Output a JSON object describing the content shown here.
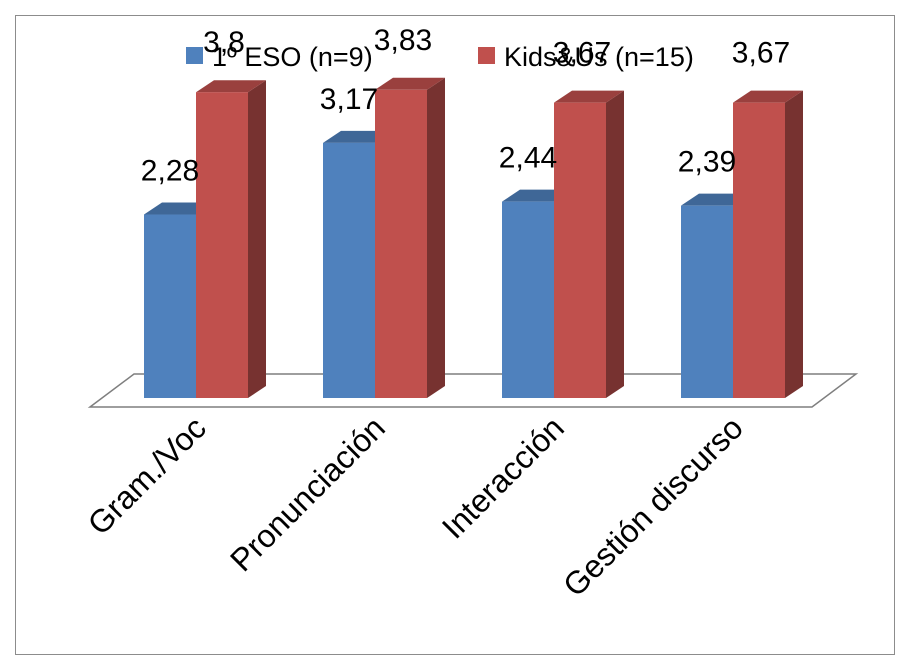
{
  "chart_data": {
    "type": "bar",
    "categories": [
      "Gram./Voc",
      "Pronunciación",
      "Interacción",
      "Gestión discurso"
    ],
    "series": [
      {
        "name": "1º ESO (n=9)",
        "values": [
          2.28,
          3.17,
          2.44,
          2.39
        ],
        "labels": [
          "2,28",
          "3,17",
          "2,44",
          "2,39"
        ],
        "color": "#4F81BD"
      },
      {
        "name": "Kids&Us (n=15)",
        "values": [
          3.8,
          3.83,
          3.67,
          3.67
        ],
        "labels": [
          "3,8",
          "3,83",
          "3,67",
          "3,67"
        ],
        "color": "#C0504D"
      }
    ],
    "ylim": [
      0,
      4.2
    ],
    "grid": false,
    "legend_position": "top",
    "style": "3d-clustered-column"
  }
}
